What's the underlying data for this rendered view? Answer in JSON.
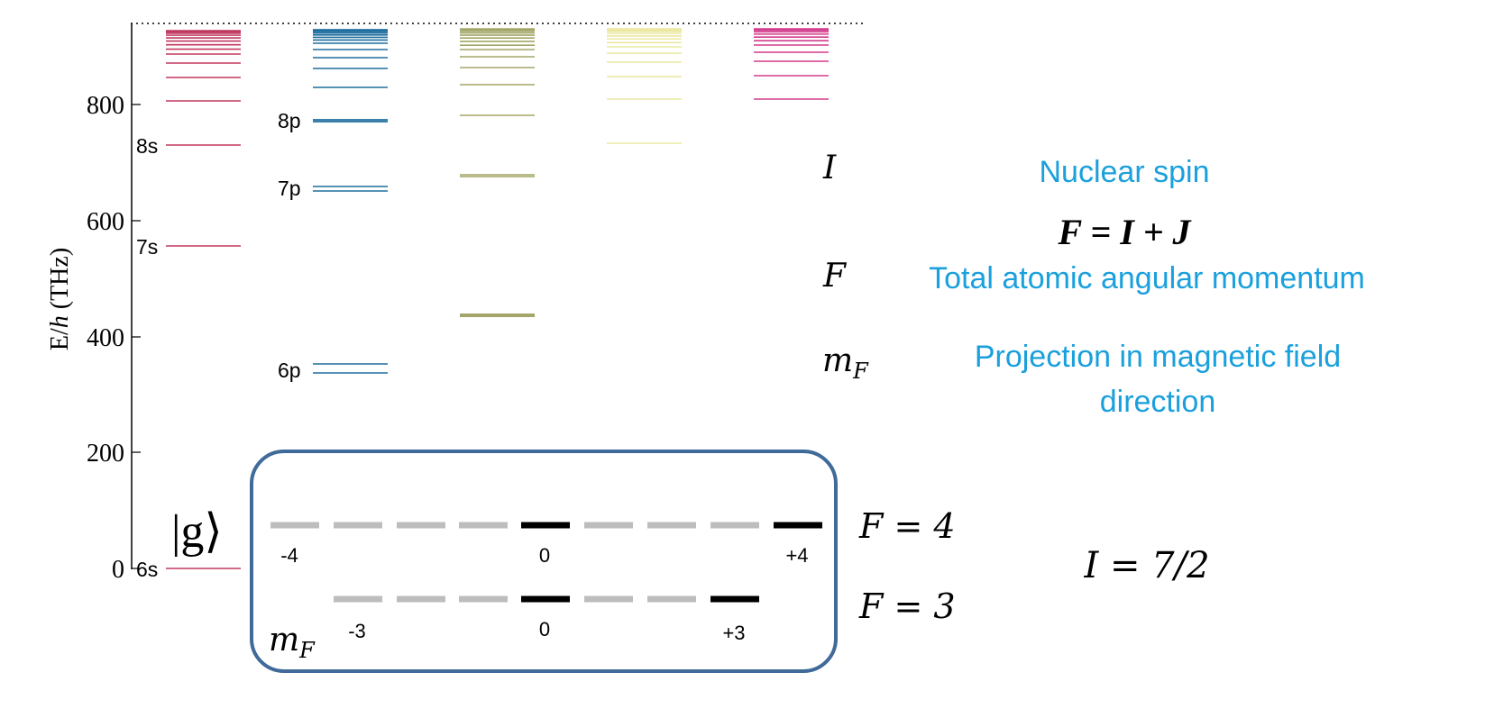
{
  "axis": {
    "ylabel_prefix": "E/",
    "ylabel_h": "h",
    "ylabel_suffix": " (THz)",
    "ticks": [
      "0",
      "200",
      "400",
      "600",
      "800"
    ]
  },
  "colors": {
    "crimson": "#c0395f",
    "blue": "#1f6e9e",
    "olive": "#a3a668",
    "yellow": "#ece8a0",
    "magenta": "#d23b8c",
    "accent": "#1aa0dc",
    "box": "#3f6a99",
    "grey": "#bdbdbd",
    "black": "#000000"
  },
  "level_labels": {
    "s8": "8s",
    "s7": "7s",
    "s6": "6s",
    "p8": "8p",
    "p7": "7p",
    "p6": "6p"
  },
  "ground_state": "|g⟩",
  "symbols": {
    "I": "I",
    "F": "F",
    "mF": "m",
    "mF_sub": "F"
  },
  "descriptions": {
    "nuclear_spin": "Nuclear spin",
    "equation": "F = I + J",
    "total_am": "Total atomic angular momentum",
    "projection_line1": "Projection in magnetic field",
    "projection_line2": "direction"
  },
  "hyperfine": {
    "F4_label": "F = 4",
    "F3_label": "F = 3",
    "spin_label": "I = 7/2",
    "mF_label": "m",
    "mF_sub": "F",
    "F4_ticks": [
      "-4",
      "0",
      "+4"
    ],
    "F3_ticks": [
      "-3",
      "0",
      "+3"
    ]
  }
}
